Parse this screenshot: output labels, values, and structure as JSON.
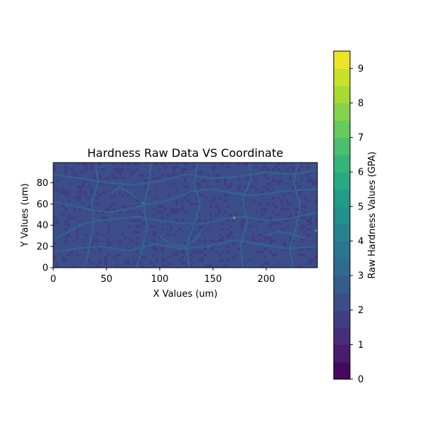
{
  "chart_data": {
    "type": "heatmap",
    "title": "Hardness Raw Data VS Coordinate",
    "xlabel": "X Values (um)",
    "ylabel": "Y Values (um)",
    "xlim": [
      0,
      248
    ],
    "ylim": [
      0,
      99
    ],
    "x_ticks": [
      "0",
      "50",
      "100",
      "150",
      "200"
    ],
    "x_tick_values": [
      0,
      50,
      100,
      150,
      200
    ],
    "y_ticks": [
      "0",
      "20",
      "40",
      "60",
      "80"
    ],
    "y_tick_values": [
      0,
      20,
      40,
      60,
      80
    ],
    "colorbar": {
      "label": "Raw Hardness Values (GPA)",
      "range": [
        0,
        9.5
      ],
      "levels": 19,
      "ticks": [
        "0",
        "1",
        "2",
        "3",
        "4",
        "5",
        "6",
        "7",
        "8",
        "9"
      ],
      "tick_values": [
        0,
        1,
        2,
        3,
        4,
        5,
        6,
        7,
        8,
        9
      ],
      "colormap": "viridis"
    },
    "background_hardness_range": [
      1.5,
      2.5
    ],
    "boundary_hardness_range": [
      2.5,
      3.5
    ],
    "hotspots": [
      {
        "x": 170,
        "y": 47,
        "value": 6.5
      },
      {
        "x": 247,
        "y": 35,
        "value": 6.0
      },
      {
        "x": 84,
        "y": 61,
        "value": 4.5
      }
    ]
  }
}
